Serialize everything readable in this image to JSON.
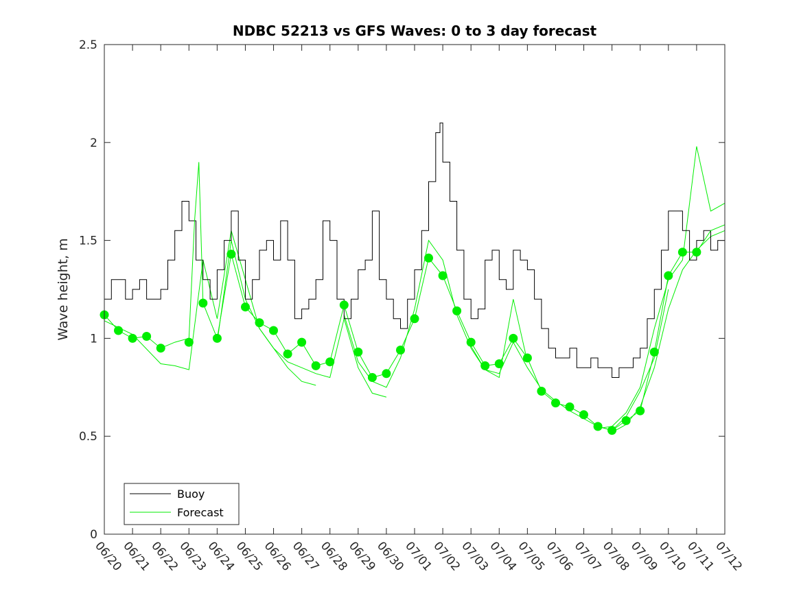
{
  "chart_data": {
    "type": "line",
    "title": "NDBC 52213 vs GFS Waves: 0 to 3 day forecast",
    "xlabel": "",
    "ylabel": "Wave height, m",
    "ylim": [
      0,
      2.5
    ],
    "xlim_days": [
      0,
      22
    ],
    "x_tick_labels": [
      "06/20",
      "06/21",
      "06/22",
      "06/23",
      "06/24",
      "06/25",
      "06/26",
      "06/27",
      "06/28",
      "06/29",
      "06/30",
      "07/01",
      "07/02",
      "07/03",
      "07/04",
      "07/05",
      "07/06",
      "07/07",
      "07/08",
      "07/09",
      "07/10",
      "07/11",
      "07/12"
    ],
    "y_ticks": [
      0,
      0.5,
      1,
      1.5,
      2,
      2.5
    ],
    "y_tick_labels": [
      "0",
      "0.5",
      "1",
      "1.5",
      "2",
      "2.5"
    ],
    "grid": false,
    "legend_position": "bottom-left",
    "colors": {
      "buoy": "#000000",
      "forecast": "#00ee00"
    },
    "series": [
      {
        "name": "Buoy",
        "style": "line",
        "x": [
          0,
          0.25,
          0.5,
          0.75,
          1,
          1.25,
          1.5,
          1.75,
          2,
          2.25,
          2.5,
          2.75,
          3,
          3.25,
          3.5,
          3.75,
          4,
          4.25,
          4.5,
          4.75,
          5,
          5.25,
          5.5,
          5.75,
          6,
          6.25,
          6.5,
          6.75,
          7,
          7.25,
          7.5,
          7.75,
          8,
          8.25,
          8.5,
          8.75,
          9,
          9.25,
          9.5,
          9.75,
          10,
          10.25,
          10.5,
          10.75,
          11,
          11.25,
          11.5,
          11.75,
          11.9,
          12,
          12.25,
          12.5,
          12.75,
          13,
          13.25,
          13.5,
          13.75,
          14,
          14.25,
          14.5,
          14.75,
          15,
          15.25,
          15.5,
          15.75,
          16,
          16.25,
          16.5,
          16.75,
          17,
          17.25,
          17.5,
          17.75,
          18,
          18.25,
          18.5,
          18.75,
          19,
          19.25,
          19.5,
          19.75,
          20,
          20.25,
          20.5,
          20.75,
          21,
          21.25,
          21.5,
          21.75,
          22
        ],
        "y": [
          1.2,
          1.3,
          1.3,
          1.2,
          1.25,
          1.3,
          1.2,
          1.2,
          1.25,
          1.4,
          1.55,
          1.7,
          1.6,
          1.4,
          1.3,
          1.2,
          1.35,
          1.5,
          1.65,
          1.4,
          1.2,
          1.3,
          1.45,
          1.5,
          1.4,
          1.6,
          1.4,
          1.1,
          1.15,
          1.2,
          1.3,
          1.6,
          1.5,
          1.2,
          1.1,
          1.2,
          1.35,
          1.4,
          1.65,
          1.3,
          1.2,
          1.1,
          1.05,
          1.2,
          1.35,
          1.55,
          1.8,
          2.05,
          2.1,
          1.9,
          1.7,
          1.45,
          1.2,
          1.1,
          1.15,
          1.4,
          1.45,
          1.3,
          1.25,
          1.45,
          1.4,
          1.35,
          1.2,
          1.05,
          0.95,
          0.9,
          0.9,
          0.95,
          0.85,
          0.85,
          0.9,
          0.85,
          0.85,
          0.8,
          0.85,
          0.85,
          0.9,
          0.95,
          1.1,
          1.25,
          1.45,
          1.65,
          1.65,
          1.55,
          1.4,
          1.5,
          1.55,
          1.45,
          1.5,
          1.6
        ]
      },
      {
        "name": "Forecast",
        "style": "line",
        "x": [
          0,
          0.5,
          1,
          1.5,
          2,
          2.5,
          3,
          3.2,
          3.35,
          3.5,
          4,
          4.5,
          5,
          5.5,
          6,
          6.5,
          7,
          7.5,
          8,
          8.5,
          9,
          9.5,
          10,
          10.5,
          11,
          11.5,
          12,
          12.5,
          13,
          13.5,
          14,
          14.5,
          15,
          15.5,
          16,
          16.5,
          17,
          17.5,
          18,
          18.5,
          19,
          19.5,
          20,
          20.5,
          21,
          21.5,
          22
        ],
        "y": [
          1.12,
          1.04,
          1.0,
          1.01,
          0.95,
          0.98,
          1.0,
          1.6,
          1.9,
          1.18,
          1.0,
          1.43,
          1.16,
          1.08,
          1.04,
          0.92,
          0.98,
          0.86,
          0.88,
          1.17,
          0.93,
          0.8,
          0.82,
          0.94,
          1.1,
          1.41,
          1.32,
          1.14,
          0.98,
          0.86,
          0.87,
          1.0,
          0.9,
          0.73,
          0.67,
          0.65,
          0.61,
          0.55,
          0.53,
          0.58,
          0.63,
          0.93,
          1.32,
          1.44,
          1.44,
          1.55,
          1.58
        ]
      }
    ],
    "extra_forecast_runs": [
      {
        "x": [
          0,
          1,
          2,
          2.5,
          3,
          3.5,
          4,
          4.5,
          5,
          5.5,
          6,
          6.5,
          7,
          7.5
        ],
        "y": [
          1.09,
          1.02,
          0.87,
          0.86,
          0.84,
          1.4,
          1.1,
          1.55,
          1.3,
          1.05,
          0.95,
          0.85,
          0.78,
          0.76
        ]
      },
      {
        "x": [
          4,
          4.5,
          5,
          5.5,
          6,
          6.5,
          7,
          7.5,
          8,
          8.5,
          9,
          9.5,
          10
        ],
        "y": [
          0.98,
          1.5,
          1.2,
          1.05,
          0.95,
          0.88,
          0.85,
          0.82,
          0.8,
          1.1,
          0.85,
          0.72,
          0.7
        ]
      },
      {
        "x": [
          8.5,
          9,
          9.5,
          10,
          10.5,
          11,
          11.5,
          12,
          12.5,
          13,
          13.5,
          14,
          14.5,
          15
        ],
        "y": [
          1.12,
          0.88,
          0.78,
          0.75,
          0.9,
          1.15,
          1.5,
          1.4,
          1.12,
          0.95,
          0.84,
          0.8,
          1.2,
          0.88
        ]
      },
      {
        "x": [
          13,
          13.5,
          14,
          14.5,
          15,
          15.5,
          16,
          16.5,
          17,
          17.5,
          18,
          18.5,
          19,
          19.5,
          20
        ],
        "y": [
          0.96,
          0.84,
          0.82,
          0.98,
          0.85,
          0.74,
          0.68,
          0.63,
          0.59,
          0.55,
          0.53,
          0.6,
          0.73,
          0.9,
          1.25
        ]
      },
      {
        "x": [
          17.5,
          18,
          18.5,
          19,
          19.5,
          20,
          20.5,
          21,
          21.5,
          22
        ],
        "y": [
          0.54,
          0.55,
          0.62,
          0.75,
          1.05,
          1.3,
          1.4,
          1.98,
          1.65,
          1.69
        ]
      },
      {
        "x": [
          18,
          18.5,
          19,
          19.5,
          20,
          20.5,
          21,
          21.5,
          22
        ],
        "y": [
          0.52,
          0.56,
          0.65,
          0.85,
          1.15,
          1.35,
          1.45,
          1.52,
          1.55
        ]
      }
    ],
    "forecast_markers": {
      "x": [
        0,
        0.5,
        1,
        1.5,
        2,
        3,
        3.5,
        4,
        4.5,
        5,
        5.5,
        6,
        6.5,
        7,
        7.5,
        8,
        8.5,
        9,
        9.5,
        10,
        10.5,
        11,
        11.5,
        12,
        12.5,
        13,
        13.5,
        14,
        14.5,
        15,
        15.5,
        16,
        16.5,
        17,
        17.5,
        18,
        18.5,
        19,
        19.5,
        20,
        20.5,
        21
      ],
      "y": [
        1.12,
        1.04,
        1.0,
        1.01,
        0.95,
        0.98,
        1.18,
        1.0,
        1.43,
        1.16,
        1.08,
        1.04,
        0.92,
        0.98,
        0.86,
        0.88,
        1.17,
        0.93,
        0.8,
        0.82,
        0.94,
        1.1,
        1.41,
        1.32,
        1.14,
        0.98,
        0.86,
        0.87,
        1.0,
        0.9,
        0.73,
        0.67,
        0.65,
        0.61,
        0.55,
        0.53,
        0.58,
        0.63,
        0.93,
        1.32,
        1.44,
        1.44
      ]
    }
  }
}
